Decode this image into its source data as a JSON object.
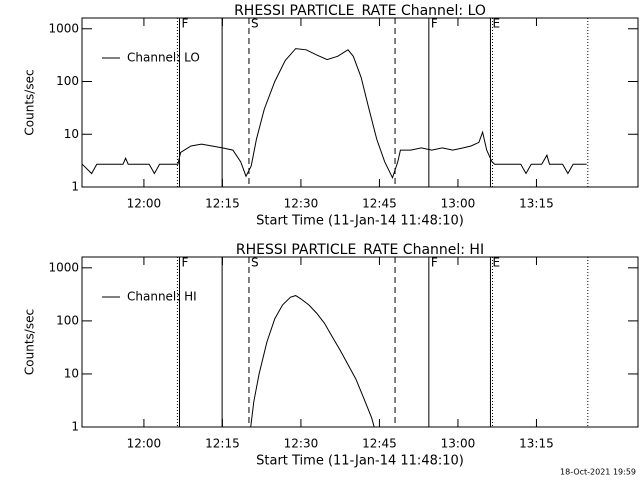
{
  "chart_data": [
    {
      "type": "line",
      "title": "RHESSI PARTICLE_RATE Channel: LO",
      "xlabel": "Start Time (11-Jan-14 11:48:10)",
      "ylabel": "Counts/sec",
      "ylog": true,
      "ylim": [
        1,
        1600
      ],
      "yticks": [
        1,
        10,
        100,
        1000
      ],
      "xlim": [
        708.17,
        814.4
      ],
      "xticks": [
        {
          "value": 720,
          "label": "12:00"
        },
        {
          "value": 735,
          "label": "12:15"
        },
        {
          "value": 750,
          "label": "12:30"
        },
        {
          "value": 765,
          "label": "12:45"
        },
        {
          "value": 780,
          "label": "13:00"
        },
        {
          "value": 795,
          "label": "13:15"
        }
      ],
      "legend": "upper left",
      "x": [
        708.2,
        710,
        711,
        716,
        716.5,
        717,
        721,
        722,
        723,
        725,
        726.5,
        727,
        729,
        731,
        733,
        735,
        737,
        738.5,
        739.5,
        740.5,
        741.5,
        743,
        745,
        747,
        749,
        751,
        753,
        755,
        757,
        759,
        760,
        761.5,
        763,
        764.5,
        766,
        767.5,
        768.5,
        769,
        771,
        773,
        775,
        777,
        779,
        781,
        782.5,
        784,
        784.7,
        785.5,
        786.5,
        787,
        790,
        792,
        793,
        794,
        796,
        797,
        797.5,
        800,
        801,
        802,
        804.6
      ],
      "series": [
        {
          "name": "Channel: LO",
          "color": "#000000",
          "values": [
            2.7,
            1.8,
            2.7,
            2.7,
            3.5,
            2.7,
            2.7,
            1.8,
            2.7,
            2.7,
            2.7,
            4.5,
            6,
            6.5,
            6,
            5.5,
            5,
            3,
            1.6,
            2.5,
            8,
            30,
            100,
            250,
            420,
            400,
            320,
            260,
            300,
            400,
            300,
            120,
            30,
            8,
            3,
            1.5,
            3,
            5,
            5,
            5.5,
            5,
            5.5,
            5,
            5.5,
            6,
            7,
            11,
            5,
            3,
            2.7,
            2.7,
            2.7,
            1.8,
            2.7,
            2.7,
            4,
            2.7,
            2.7,
            1.8,
            2.7,
            2.7
          ]
        }
      ],
      "markers": [
        {
          "x": 726.4,
          "style": "dotted"
        },
        {
          "x": 726.8,
          "style": "solid",
          "label": "F"
        },
        {
          "x": 734.94,
          "style": "solid"
        },
        {
          "x": 740.07,
          "style": "dashed",
          "label": "S"
        },
        {
          "x": 767.98,
          "style": "dashed"
        },
        {
          "x": 774.44,
          "style": "solid",
          "label": "F"
        },
        {
          "x": 786.21,
          "style": "solid",
          "label": "E"
        },
        {
          "x": 786.6,
          "style": "dotted"
        },
        {
          "x": 804.81,
          "style": "dotted"
        }
      ]
    },
    {
      "type": "line",
      "title": "RHESSI PARTICLE_RATE Channel: HI",
      "xlabel": "Start Time (11-Jan-14 11:48:10)",
      "ylabel": "Counts/sec",
      "ylog": true,
      "ylim": [
        1,
        1600
      ],
      "yticks": [
        1,
        10,
        100,
        1000
      ],
      "xlim": [
        708.17,
        814.4
      ],
      "xticks": [
        {
          "value": 720,
          "label": "12:00"
        },
        {
          "value": 735,
          "label": "12:15"
        },
        {
          "value": 750,
          "label": "12:30"
        },
        {
          "value": 765,
          "label": "12:45"
        },
        {
          "value": 780,
          "label": "13:00"
        },
        {
          "value": 795,
          "label": "13:15"
        }
      ],
      "legend": "upper left",
      "x": [
        740.4,
        741,
        742,
        743.5,
        745,
        746.5,
        748,
        749,
        750,
        751.5,
        753,
        754.5,
        756,
        757.5,
        759,
        760.5,
        762,
        763.5,
        764
      ],
      "series": [
        {
          "name": "Channel: HI",
          "color": "#000000",
          "values": [
            1,
            3,
            10,
            40,
            110,
            200,
            280,
            300,
            260,
            200,
            140,
            90,
            50,
            28,
            15,
            8,
            3.5,
            1.5,
            1
          ]
        }
      ],
      "markers": [
        {
          "x": 726.4,
          "style": "dotted"
        },
        {
          "x": 726.8,
          "style": "solid",
          "label": "F"
        },
        {
          "x": 734.94,
          "style": "solid"
        },
        {
          "x": 740.07,
          "style": "dashed",
          "label": "S"
        },
        {
          "x": 767.98,
          "style": "dashed"
        },
        {
          "x": 774.44,
          "style": "solid",
          "label": "F"
        },
        {
          "x": 786.21,
          "style": "solid",
          "label": "E"
        },
        {
          "x": 786.6,
          "style": "dotted"
        },
        {
          "x": 804.81,
          "style": "dotted"
        }
      ]
    }
  ],
  "footer": "18-Oct-2021 19:59"
}
